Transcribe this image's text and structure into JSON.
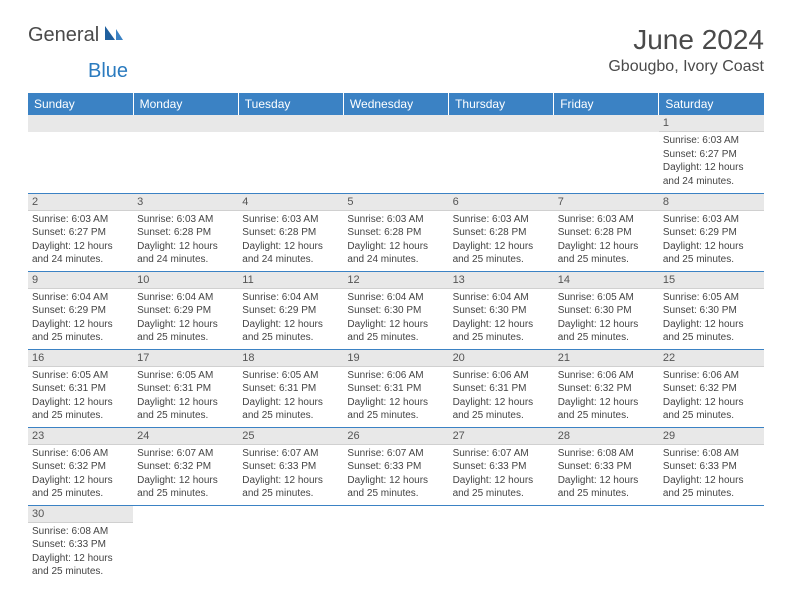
{
  "brand": {
    "part1": "General",
    "part2": "Blue"
  },
  "title": "June 2024",
  "location": "Gbougbo, Ivory Coast",
  "colors": {
    "header_bg": "#3b82c4",
    "header_text": "#ffffff",
    "daynum_bg": "#e8e8e8",
    "daynum_text": "#555555",
    "body_text": "#444444",
    "grid_line": "#3b82c4",
    "brand_dark": "#4a4a4a",
    "brand_blue": "#2b7bbf"
  },
  "day_headers": [
    "Sunday",
    "Monday",
    "Tuesday",
    "Wednesday",
    "Thursday",
    "Friday",
    "Saturday"
  ],
  "weeks": [
    [
      null,
      null,
      null,
      null,
      null,
      null,
      {
        "n": "1",
        "sunrise": "Sunrise: 6:03 AM",
        "sunset": "Sunset: 6:27 PM",
        "daylight": "Daylight: 12 hours and 24 minutes."
      }
    ],
    [
      {
        "n": "2",
        "sunrise": "Sunrise: 6:03 AM",
        "sunset": "Sunset: 6:27 PM",
        "daylight": "Daylight: 12 hours and 24 minutes."
      },
      {
        "n": "3",
        "sunrise": "Sunrise: 6:03 AM",
        "sunset": "Sunset: 6:28 PM",
        "daylight": "Daylight: 12 hours and 24 minutes."
      },
      {
        "n": "4",
        "sunrise": "Sunrise: 6:03 AM",
        "sunset": "Sunset: 6:28 PM",
        "daylight": "Daylight: 12 hours and 24 minutes."
      },
      {
        "n": "5",
        "sunrise": "Sunrise: 6:03 AM",
        "sunset": "Sunset: 6:28 PM",
        "daylight": "Daylight: 12 hours and 24 minutes."
      },
      {
        "n": "6",
        "sunrise": "Sunrise: 6:03 AM",
        "sunset": "Sunset: 6:28 PM",
        "daylight": "Daylight: 12 hours and 25 minutes."
      },
      {
        "n": "7",
        "sunrise": "Sunrise: 6:03 AM",
        "sunset": "Sunset: 6:28 PM",
        "daylight": "Daylight: 12 hours and 25 minutes."
      },
      {
        "n": "8",
        "sunrise": "Sunrise: 6:03 AM",
        "sunset": "Sunset: 6:29 PM",
        "daylight": "Daylight: 12 hours and 25 minutes."
      }
    ],
    [
      {
        "n": "9",
        "sunrise": "Sunrise: 6:04 AM",
        "sunset": "Sunset: 6:29 PM",
        "daylight": "Daylight: 12 hours and 25 minutes."
      },
      {
        "n": "10",
        "sunrise": "Sunrise: 6:04 AM",
        "sunset": "Sunset: 6:29 PM",
        "daylight": "Daylight: 12 hours and 25 minutes."
      },
      {
        "n": "11",
        "sunrise": "Sunrise: 6:04 AM",
        "sunset": "Sunset: 6:29 PM",
        "daylight": "Daylight: 12 hours and 25 minutes."
      },
      {
        "n": "12",
        "sunrise": "Sunrise: 6:04 AM",
        "sunset": "Sunset: 6:30 PM",
        "daylight": "Daylight: 12 hours and 25 minutes."
      },
      {
        "n": "13",
        "sunrise": "Sunrise: 6:04 AM",
        "sunset": "Sunset: 6:30 PM",
        "daylight": "Daylight: 12 hours and 25 minutes."
      },
      {
        "n": "14",
        "sunrise": "Sunrise: 6:05 AM",
        "sunset": "Sunset: 6:30 PM",
        "daylight": "Daylight: 12 hours and 25 minutes."
      },
      {
        "n": "15",
        "sunrise": "Sunrise: 6:05 AM",
        "sunset": "Sunset: 6:30 PM",
        "daylight": "Daylight: 12 hours and 25 minutes."
      }
    ],
    [
      {
        "n": "16",
        "sunrise": "Sunrise: 6:05 AM",
        "sunset": "Sunset: 6:31 PM",
        "daylight": "Daylight: 12 hours and 25 minutes."
      },
      {
        "n": "17",
        "sunrise": "Sunrise: 6:05 AM",
        "sunset": "Sunset: 6:31 PM",
        "daylight": "Daylight: 12 hours and 25 minutes."
      },
      {
        "n": "18",
        "sunrise": "Sunrise: 6:05 AM",
        "sunset": "Sunset: 6:31 PM",
        "daylight": "Daylight: 12 hours and 25 minutes."
      },
      {
        "n": "19",
        "sunrise": "Sunrise: 6:06 AM",
        "sunset": "Sunset: 6:31 PM",
        "daylight": "Daylight: 12 hours and 25 minutes."
      },
      {
        "n": "20",
        "sunrise": "Sunrise: 6:06 AM",
        "sunset": "Sunset: 6:31 PM",
        "daylight": "Daylight: 12 hours and 25 minutes."
      },
      {
        "n": "21",
        "sunrise": "Sunrise: 6:06 AM",
        "sunset": "Sunset: 6:32 PM",
        "daylight": "Daylight: 12 hours and 25 minutes."
      },
      {
        "n": "22",
        "sunrise": "Sunrise: 6:06 AM",
        "sunset": "Sunset: 6:32 PM",
        "daylight": "Daylight: 12 hours and 25 minutes."
      }
    ],
    [
      {
        "n": "23",
        "sunrise": "Sunrise: 6:06 AM",
        "sunset": "Sunset: 6:32 PM",
        "daylight": "Daylight: 12 hours and 25 minutes."
      },
      {
        "n": "24",
        "sunrise": "Sunrise: 6:07 AM",
        "sunset": "Sunset: 6:32 PM",
        "daylight": "Daylight: 12 hours and 25 minutes."
      },
      {
        "n": "25",
        "sunrise": "Sunrise: 6:07 AM",
        "sunset": "Sunset: 6:33 PM",
        "daylight": "Daylight: 12 hours and 25 minutes."
      },
      {
        "n": "26",
        "sunrise": "Sunrise: 6:07 AM",
        "sunset": "Sunset: 6:33 PM",
        "daylight": "Daylight: 12 hours and 25 minutes."
      },
      {
        "n": "27",
        "sunrise": "Sunrise: 6:07 AM",
        "sunset": "Sunset: 6:33 PM",
        "daylight": "Daylight: 12 hours and 25 minutes."
      },
      {
        "n": "28",
        "sunrise": "Sunrise: 6:08 AM",
        "sunset": "Sunset: 6:33 PM",
        "daylight": "Daylight: 12 hours and 25 minutes."
      },
      {
        "n": "29",
        "sunrise": "Sunrise: 6:08 AM",
        "sunset": "Sunset: 6:33 PM",
        "daylight": "Daylight: 12 hours and 25 minutes."
      }
    ],
    [
      {
        "n": "30",
        "sunrise": "Sunrise: 6:08 AM",
        "sunset": "Sunset: 6:33 PM",
        "daylight": "Daylight: 12 hours and 25 minutes."
      },
      null,
      null,
      null,
      null,
      null,
      null
    ]
  ]
}
